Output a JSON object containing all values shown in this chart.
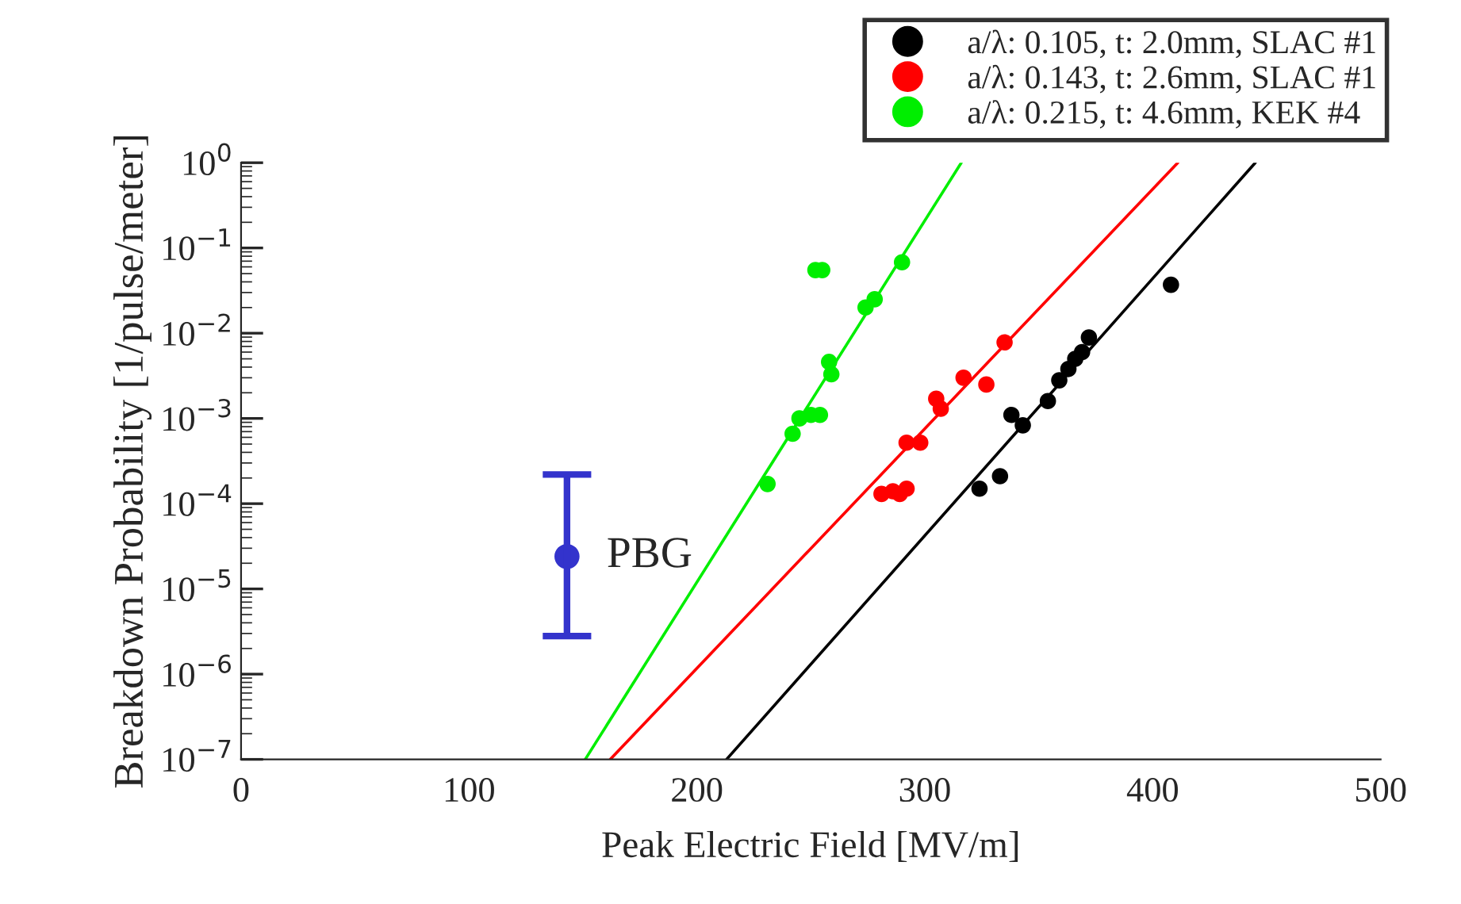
{
  "chart_data": {
    "type": "scatter",
    "xlabel": "Peak Electric Field [MV/m]",
    "ylabel": "Breakdown Probability [1/pulse/meter]",
    "log": "y",
    "xlim": [
      0,
      500
    ],
    "xticks": [
      0,
      100,
      200,
      300,
      400,
      500
    ],
    "ylim": [
      1e-07,
      1
    ],
    "yticks": [
      {
        "value": 1e-07,
        "label": "10$^{−7}$"
      },
      {
        "value": 1e-06,
        "label": "10$^{−6}$"
      },
      {
        "value": 1e-05,
        "label": "10$^{−5}$"
      },
      {
        "value": 0.0001,
        "label": "10$^{−4}$"
      },
      {
        "value": 0.001,
        "label": "10$^{−3}$"
      },
      {
        "value": 0.01,
        "label": "10$^{−2}$"
      },
      {
        "value": 0.1,
        "label": "10$^{−1}$"
      },
      {
        "value": 1,
        "label": "10$^{0}$"
      }
    ],
    "legend": "top right",
    "marker": "circle",
    "grid": false,
    "series": [
      {
        "name": "a/λ: 0.105, t: 2.0mm, SLAC #1",
        "color": "#000000",
        "x": [
          324,
          333,
          338,
          343,
          354,
          359,
          363,
          366,
          369,
          372,
          408
        ],
        "values": [
          0.00015,
          0.00021,
          0.0011,
          0.00083,
          0.0016,
          0.0028,
          0.0038,
          0.005,
          0.006,
          0.0089,
          0.037
        ]
      },
      {
        "name": "a/λ: 0.143, t: 2.6mm, SLAC #1",
        "color": "#ff0000",
        "x": [
          281,
          286,
          289,
          292,
          292,
          298,
          305,
          307,
          317,
          327,
          335
        ],
        "values": [
          0.00013,
          0.00014,
          0.00013,
          0.00015,
          0.00052,
          0.00052,
          0.0017,
          0.0013,
          0.003,
          0.0025,
          0.0078
        ]
      },
      {
        "name": "a/λ: 0.215, t: 4.6mm, KEK #4",
        "color": "#00ee00",
        "x": [
          231,
          242,
          245,
          250,
          254,
          252,
          255,
          258,
          259,
          274,
          278,
          290
        ],
        "values": [
          0.00017,
          0.00066,
          0.001,
          0.0011,
          0.0011,
          0.055,
          0.055,
          0.0046,
          0.0033,
          0.02,
          0.025,
          0.068
        ]
      },
      {
        "type": "line",
        "marker": "none",
        "color": "#000000",
        "x": [
          213,
          445
        ],
        "values": [
          1e-07,
          1
        ]
      },
      {
        "type": "line",
        "marker": "none",
        "color": "#ff0000",
        "x": [
          162,
          411
        ],
        "values": [
          1e-07,
          1
        ]
      },
      {
        "type": "line",
        "marker": "none",
        "color": "#00ee00",
        "x": [
          151,
          316
        ],
        "values": [
          1e-07,
          1
        ]
      },
      {
        "color": "#3333cc",
        "x": [
          143
        ],
        "values": [
          2.4e-05
        ],
        "errors": [
          [
            2.8e-06,
            0.00022
          ]
        ]
      }
    ],
    "annotations": [
      {
        "text": "PBG",
        "x": 143,
        "y": 2.4e-05
      }
    ]
  }
}
